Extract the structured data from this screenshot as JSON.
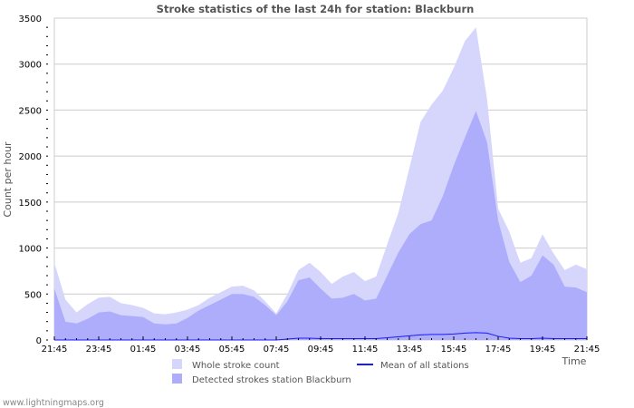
{
  "chart_data": {
    "type": "area",
    "title": "Stroke statistics of the last 24h for station: Blackburn",
    "xlabel": "Time",
    "ylabel": "Count per hour",
    "ylim": [
      0,
      3500
    ],
    "yticks": [
      0,
      500,
      1000,
      1500,
      2000,
      2500,
      3000,
      3500
    ],
    "xtick_labels": [
      "21:45",
      "23:45",
      "01:45",
      "03:45",
      "05:45",
      "07:45",
      "09:45",
      "11:45",
      "13:45",
      "15:45",
      "17:45",
      "19:45",
      "21:45"
    ],
    "x_step_minutes": 30,
    "grid": true,
    "legend_placement": "bottom",
    "series": [
      {
        "name": "Whole stroke count",
        "color": "#d6d6fc",
        "kind": "area",
        "values": [
          840,
          440,
          300,
          390,
          460,
          470,
          400,
          380,
          350,
          290,
          280,
          300,
          330,
          380,
          460,
          520,
          580,
          590,
          540,
          420,
          290,
          500,
          760,
          840,
          740,
          610,
          690,
          740,
          640,
          690,
          1040,
          1380,
          1870,
          2370,
          2560,
          2710,
          2960,
          3250,
          3400,
          2620,
          1430,
          1180,
          840,
          890,
          1150,
          940,
          760,
          820,
          770
        ]
      },
      {
        "name": "Detected strokes station Blackburn",
        "color": "#adadfc",
        "kind": "area",
        "values": [
          560,
          200,
          180,
          230,
          300,
          310,
          270,
          260,
          250,
          180,
          170,
          180,
          240,
          320,
          380,
          440,
          500,
          500,
          470,
          380,
          270,
          420,
          650,
          680,
          560,
          450,
          460,
          500,
          430,
          450,
          700,
          950,
          1150,
          1260,
          1300,
          1560,
          1900,
          2200,
          2490,
          2150,
          1300,
          850,
          630,
          700,
          920,
          820,
          580,
          570,
          520
        ]
      },
      {
        "name": "Mean of all stations",
        "color": "#1a1aff",
        "kind": "line",
        "values": [
          0,
          0,
          0,
          0,
          0,
          0,
          0,
          0,
          0,
          0,
          0,
          0,
          0,
          0,
          0,
          0,
          0,
          0,
          0,
          0,
          0,
          10,
          20,
          20,
          15,
          15,
          15,
          15,
          15,
          15,
          25,
          35,
          45,
          55,
          60,
          60,
          65,
          75,
          80,
          75,
          40,
          20,
          15,
          15,
          20,
          15,
          15,
          15,
          15
        ]
      }
    ]
  },
  "footer": {
    "credit": "www.lightningmaps.org"
  }
}
